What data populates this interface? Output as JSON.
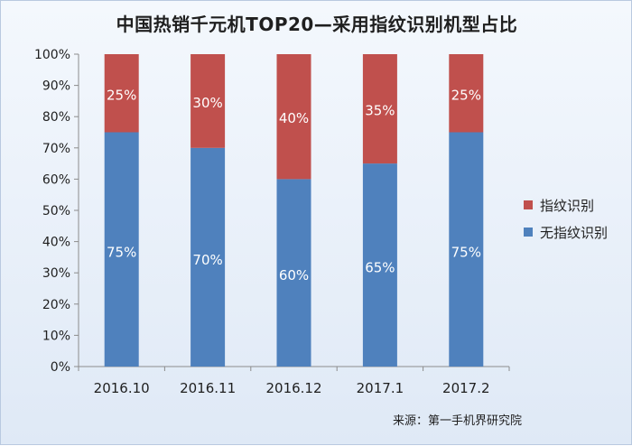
{
  "chart_data": {
    "type": "bar",
    "stacked": true,
    "title": "中国热销千元机TOP20—采用指纹识别机型占比",
    "categories": [
      "2016.10",
      "2016.11",
      "2016.12",
      "2017.1",
      "2017.2"
    ],
    "series": [
      {
        "name": "无指纹识别",
        "color": "#4f81bd",
        "values": [
          75,
          70,
          60,
          65,
          75
        ],
        "labels": [
          "75%",
          "70%",
          "60%",
          "65%",
          "75%"
        ]
      },
      {
        "name": "指纹识别",
        "color": "#c0504d",
        "values": [
          25,
          30,
          40,
          35,
          25
        ],
        "labels": [
          "25%",
          "30%",
          "40%",
          "35%",
          "25%"
        ]
      }
    ],
    "yticks": [
      "0%",
      "10%",
      "20%",
      "30%",
      "40%",
      "50%",
      "60%",
      "70%",
      "80%",
      "90%",
      "100%"
    ],
    "ylim": [
      0,
      100
    ],
    "grid": false,
    "legend_position": "right"
  },
  "source_note": "来源：第一手机界研究院"
}
